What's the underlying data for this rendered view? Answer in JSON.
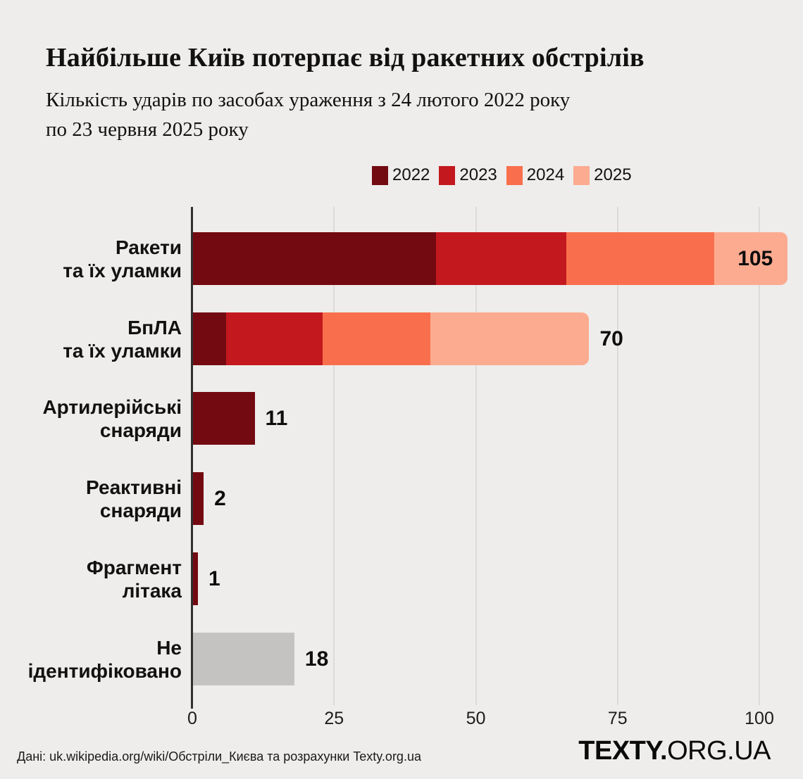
{
  "title": "Найбільше Київ потерпає від ракетних обстрілів",
  "subtitle_lines": [
    "Кількість ударів по засобах ураження з 24 лютого 2022 року",
    "по 23 червня 2025 року"
  ],
  "footer": {
    "source": "Дані: uk.wikipedia.org/wiki/Обстріли_Києва та розрахунки Texty.org.ua",
    "logo_bold": "TEXTY.",
    "logo_light": "ORG.UA"
  },
  "colors": {
    "background": "#eeedeb",
    "grid": "#dcdbd9",
    "axis": "#2f2f2f",
    "text": "#111111",
    "year_2022": "#730a11",
    "year_2023": "#c3181e",
    "year_2024": "#f96f4d",
    "year_2025": "#fcab90",
    "unidentified": "#c4c3c2"
  },
  "chart_data": {
    "type": "bar",
    "orientation": "horizontal",
    "stacked": true,
    "grid": true,
    "xlim": [
      0,
      105
    ],
    "x_ticks": [
      "0",
      "25",
      "50",
      "75",
      "100"
    ],
    "x_tick_values": [
      0,
      25,
      50,
      75,
      100
    ],
    "legend_position": "top-right",
    "legend": [
      {
        "label": "2022",
        "color": "#730a11"
      },
      {
        "label": "2023",
        "color": "#c3181e"
      },
      {
        "label": "2024",
        "color": "#f96f4d"
      },
      {
        "label": "2025",
        "color": "#fcab90"
      }
    ],
    "categories": [
      "Ракети та їх уламки",
      "БпЛА та їх уламки",
      "Артилерійські снаряди",
      "Реактивні снаряди",
      "Фрагмент літака",
      "Не ідентифіковано"
    ],
    "series": [
      {
        "name": "2022",
        "color": "#730a11",
        "values": [
          43,
          6,
          11,
          2,
          1,
          0
        ]
      },
      {
        "name": "2023",
        "color": "#c3181e",
        "values": [
          23,
          17,
          0,
          0,
          0,
          0
        ]
      },
      {
        "name": "2024",
        "color": "#f96f4d",
        "values": [
          26,
          19,
          0,
          0,
          0,
          0
        ]
      },
      {
        "name": "2025",
        "color": "#fcab90",
        "values": [
          13,
          28,
          0,
          0,
          0,
          0
        ]
      },
      {
        "name": "Не ідентифіковано",
        "color": "#c4c3c2",
        "values": [
          0,
          0,
          0,
          0,
          0,
          18
        ]
      }
    ],
    "rows": [
      {
        "label_lines": [
          "Ракети",
          "та їх уламки"
        ],
        "total": 105,
        "total_label": "105",
        "value_label_inside": true,
        "rounded_end": true,
        "segments": [
          {
            "year": "2022",
            "value": 43,
            "color": "#730a11"
          },
          {
            "year": "2023",
            "value": 23,
            "color": "#c3181e"
          },
          {
            "year": "2024",
            "value": 26,
            "color": "#f96f4d"
          },
          {
            "year": "2025",
            "value": 13,
            "color": "#fcab90"
          }
        ]
      },
      {
        "label_lines": [
          "БпЛА",
          "та їх уламки"
        ],
        "total": 70,
        "total_label": "70",
        "value_label_inside": false,
        "rounded_end": true,
        "segments": [
          {
            "year": "2022",
            "value": 6,
            "color": "#730a11"
          },
          {
            "year": "2023",
            "value": 17,
            "color": "#c3181e"
          },
          {
            "year": "2024",
            "value": 19,
            "color": "#f96f4d"
          },
          {
            "year": "2025",
            "value": 28,
            "color": "#fcab90"
          }
        ]
      },
      {
        "label_lines": [
          "Артилерійські",
          "снаряди"
        ],
        "total": 11,
        "total_label": "11",
        "value_label_inside": false,
        "rounded_end": false,
        "segments": [
          {
            "year": "2022",
            "value": 11,
            "color": "#730a11"
          }
        ]
      },
      {
        "label_lines": [
          "Реактивні",
          "снаряди"
        ],
        "total": 2,
        "total_label": "2",
        "value_label_inside": false,
        "rounded_end": false,
        "segments": [
          {
            "year": "2022",
            "value": 2,
            "color": "#730a11"
          }
        ]
      },
      {
        "label_lines": [
          "Фрагмент",
          "літака"
        ],
        "total": 1,
        "total_label": "1",
        "value_label_inside": false,
        "rounded_end": false,
        "segments": [
          {
            "year": "2022",
            "value": 1,
            "color": "#730a11"
          }
        ]
      },
      {
        "label_lines": [
          "Не ідентифіковано"
        ],
        "total": 18,
        "total_label": "18",
        "value_label_inside": false,
        "rounded_end": false,
        "segments": [
          {
            "year": "Не ідентифіковано",
            "value": 18,
            "color": "#c4c3c2"
          }
        ]
      }
    ]
  }
}
